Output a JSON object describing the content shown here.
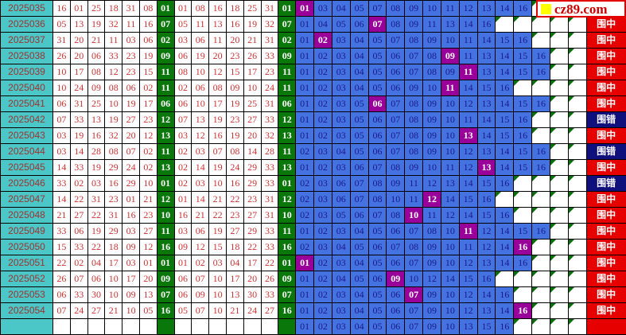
{
  "logo": {
    "text": "cz89.com"
  },
  "result_labels": {
    "hit": "围中",
    "miss": "围错",
    "pending": ""
  },
  "colors": {
    "period_bg": "#4cc7c7",
    "period_text": "#993333",
    "number_text": "#cc3333",
    "special_bg": "#0a770a",
    "covered_bg": "#4472e0",
    "covered_text": "#1a1a8c",
    "hit_bg": "#990099",
    "result_hit_bg": "#e60000",
    "result_miss_bg": "#10107d",
    "triangle": "#0a6e0a",
    "logo_border": "#e00000",
    "logo_text": "#cc0000",
    "logo_square": "#ffff00"
  },
  "chart_data": {
    "type": "table",
    "covered_slot_count": 16,
    "rows": [
      {
        "period": "2025035",
        "drawn": [
          "16",
          "01",
          "25",
          "18",
          "31",
          "08"
        ],
        "special": "01",
        "sorted": [
          "01",
          "08",
          "16",
          "18",
          "25",
          "31"
        ],
        "covered": [
          "01",
          "03",
          "04",
          "05",
          "07",
          "08",
          "09",
          "10",
          "11",
          "12",
          "13",
          "14",
          "16"
        ],
        "hit": "01",
        "result": "hit"
      },
      {
        "period": "2025036",
        "drawn": [
          "05",
          "13",
          "19",
          "32",
          "11",
          "16"
        ],
        "special": "07",
        "sorted": [
          "05",
          "11",
          "13",
          "16",
          "19",
          "32"
        ],
        "covered": [
          "01",
          "04",
          "05",
          "06",
          "07",
          "08",
          "09",
          "11",
          "13",
          "14",
          "16"
        ],
        "hit": "07",
        "result": "hit"
      },
      {
        "period": "2025037",
        "drawn": [
          "31",
          "20",
          "21",
          "11",
          "03",
          "06"
        ],
        "special": "02",
        "sorted": [
          "03",
          "06",
          "11",
          "20",
          "21",
          "31"
        ],
        "covered": [
          "01",
          "02",
          "03",
          "04",
          "05",
          "07",
          "08",
          "09",
          "10",
          "11",
          "14",
          "15",
          "16"
        ],
        "hit": "02",
        "result": "hit"
      },
      {
        "period": "2025038",
        "drawn": [
          "26",
          "20",
          "06",
          "33",
          "23",
          "19"
        ],
        "special": "09",
        "sorted": [
          "06",
          "19",
          "20",
          "23",
          "26",
          "33"
        ],
        "covered": [
          "01",
          "02",
          "03",
          "04",
          "05",
          "06",
          "07",
          "08",
          "09",
          "11",
          "13",
          "14",
          "15",
          "16"
        ],
        "hit": "09",
        "result": "hit"
      },
      {
        "period": "2025039",
        "drawn": [
          "10",
          "17",
          "08",
          "12",
          "23",
          "15"
        ],
        "special": "11",
        "sorted": [
          "08",
          "10",
          "12",
          "15",
          "17",
          "23"
        ],
        "covered": [
          "01",
          "02",
          "03",
          "04",
          "05",
          "06",
          "07",
          "08",
          "09",
          "11",
          "13",
          "14",
          "15",
          "16"
        ],
        "hit": "11",
        "result": "hit"
      },
      {
        "period": "2025040",
        "drawn": [
          "10",
          "24",
          "09",
          "08",
          "06",
          "02"
        ],
        "special": "11",
        "sorted": [
          "02",
          "06",
          "08",
          "09",
          "10",
          "24"
        ],
        "covered": [
          "01",
          "02",
          "03",
          "04",
          "05",
          "06",
          "09",
          "10",
          "11",
          "14",
          "15",
          "16"
        ],
        "hit": "11",
        "result": "hit"
      },
      {
        "period": "2025041",
        "drawn": [
          "06",
          "31",
          "25",
          "10",
          "19",
          "17"
        ],
        "special": "06",
        "sorted": [
          "06",
          "10",
          "17",
          "19",
          "25",
          "31"
        ],
        "covered": [
          "01",
          "02",
          "03",
          "05",
          "06",
          "07",
          "08",
          "09",
          "10",
          "12",
          "13",
          "14",
          "15",
          "16"
        ],
        "hit": "06",
        "result": "hit"
      },
      {
        "period": "2025042",
        "drawn": [
          "07",
          "33",
          "13",
          "19",
          "27",
          "23"
        ],
        "special": "12",
        "sorted": [
          "07",
          "13",
          "19",
          "23",
          "27",
          "33"
        ],
        "covered": [
          "01",
          "02",
          "03",
          "05",
          "06",
          "07",
          "08",
          "09",
          "10",
          "11",
          "14",
          "15",
          "16"
        ],
        "hit": null,
        "result": "miss"
      },
      {
        "period": "2025043",
        "drawn": [
          "03",
          "19",
          "16",
          "32",
          "20",
          "12"
        ],
        "special": "13",
        "sorted": [
          "03",
          "12",
          "16",
          "19",
          "20",
          "32"
        ],
        "covered": [
          "01",
          "02",
          "03",
          "05",
          "06",
          "07",
          "08",
          "09",
          "10",
          "13",
          "14",
          "15",
          "16"
        ],
        "hit": "13",
        "result": "hit"
      },
      {
        "period": "2025044",
        "drawn": [
          "03",
          "14",
          "28",
          "08",
          "07",
          "02"
        ],
        "special": "11",
        "sorted": [
          "02",
          "03",
          "07",
          "08",
          "14",
          "28"
        ],
        "covered": [
          "02",
          "03",
          "04",
          "05",
          "06",
          "07",
          "08",
          "09",
          "10",
          "12",
          "13",
          "14",
          "15",
          "16"
        ],
        "hit": null,
        "result": "miss"
      },
      {
        "period": "2025045",
        "drawn": [
          "14",
          "33",
          "19",
          "29",
          "24",
          "02"
        ],
        "special": "13",
        "sorted": [
          "02",
          "14",
          "19",
          "24",
          "29",
          "33"
        ],
        "covered": [
          "01",
          "02",
          "03",
          "06",
          "07",
          "08",
          "09",
          "10",
          "11",
          "12",
          "13",
          "14",
          "15",
          "16"
        ],
        "hit": "13",
        "result": "hit"
      },
      {
        "period": "2025046",
        "drawn": [
          "33",
          "02",
          "03",
          "16",
          "29",
          "10"
        ],
        "special": "01",
        "sorted": [
          "02",
          "03",
          "10",
          "16",
          "29",
          "33"
        ],
        "covered": [
          "02",
          "03",
          "06",
          "07",
          "08",
          "09",
          "11",
          "12",
          "13",
          "14",
          "15",
          "16"
        ],
        "hit": null,
        "result": "miss"
      },
      {
        "period": "2025047",
        "drawn": [
          "14",
          "22",
          "31",
          "23",
          "01",
          "21"
        ],
        "special": "12",
        "sorted": [
          "01",
          "14",
          "21",
          "22",
          "23",
          "31"
        ],
        "covered": [
          "02",
          "03",
          "06",
          "07",
          "08",
          "10",
          "11",
          "12",
          "14",
          "15",
          "16"
        ],
        "hit": "12",
        "result": "hit"
      },
      {
        "period": "2025048",
        "drawn": [
          "21",
          "27",
          "22",
          "31",
          "16",
          "23"
        ],
        "special": "10",
        "sorted": [
          "16",
          "21",
          "22",
          "23",
          "27",
          "31"
        ],
        "covered": [
          "02",
          "03",
          "05",
          "06",
          "07",
          "08",
          "10",
          "11",
          "12",
          "14",
          "15",
          "16"
        ],
        "hit": "10",
        "result": "hit"
      },
      {
        "period": "2025049",
        "drawn": [
          "33",
          "06",
          "19",
          "29",
          "03",
          "27"
        ],
        "special": "11",
        "sorted": [
          "03",
          "06",
          "19",
          "27",
          "29",
          "33"
        ],
        "covered": [
          "01",
          "02",
          "03",
          "04",
          "05",
          "06",
          "07",
          "08",
          "10",
          "11",
          "12",
          "14",
          "15",
          "16"
        ],
        "hit": "11",
        "result": "hit"
      },
      {
        "period": "2025050",
        "drawn": [
          "15",
          "33",
          "22",
          "18",
          "09",
          "12"
        ],
        "special": "16",
        "sorted": [
          "09",
          "12",
          "15",
          "18",
          "22",
          "33"
        ],
        "covered": [
          "02",
          "03",
          "04",
          "05",
          "06",
          "07",
          "08",
          "09",
          "10",
          "11",
          "12",
          "14",
          "16"
        ],
        "hit": "16",
        "result": "hit"
      },
      {
        "period": "2025051",
        "drawn": [
          "22",
          "02",
          "04",
          "17",
          "03",
          "01"
        ],
        "special": "01",
        "sorted": [
          "01",
          "02",
          "03",
          "04",
          "17",
          "22"
        ],
        "covered": [
          "01",
          "02",
          "03",
          "04",
          "05",
          "06",
          "07",
          "09",
          "10",
          "12",
          "13",
          "14",
          "16"
        ],
        "hit": "01",
        "result": "hit"
      },
      {
        "period": "2025052",
        "drawn": [
          "26",
          "07",
          "06",
          "10",
          "17",
          "20"
        ],
        "special": "09",
        "sorted": [
          "06",
          "07",
          "10",
          "17",
          "20",
          "26"
        ],
        "covered": [
          "01",
          "02",
          "04",
          "05",
          "06",
          "09",
          "10",
          "12",
          "14",
          "15",
          "16"
        ],
        "hit": "09",
        "result": "hit"
      },
      {
        "period": "2025053",
        "drawn": [
          "06",
          "33",
          "30",
          "10",
          "09",
          "13"
        ],
        "special": "07",
        "sorted": [
          "06",
          "09",
          "10",
          "13",
          "30",
          "33"
        ],
        "covered": [
          "01",
          "02",
          "03",
          "04",
          "05",
          "06",
          "07",
          "09",
          "10",
          "12",
          "14",
          "16"
        ],
        "hit": "07",
        "result": "hit"
      },
      {
        "period": "2025054",
        "drawn": [
          "07",
          "24",
          "27",
          "21",
          "10",
          "05"
        ],
        "special": "16",
        "sorted": [
          "05",
          "07",
          "10",
          "21",
          "24",
          "27"
        ],
        "covered": [
          "01",
          "02",
          "03",
          "04",
          "05",
          "06",
          "07",
          "09",
          "10",
          "12",
          "13",
          "14",
          "16"
        ],
        "hit": "16",
        "result": "hit"
      },
      {
        "period": "",
        "drawn": [
          "",
          "",
          "",
          "",
          "",
          ""
        ],
        "special": "",
        "sorted": [
          "",
          "",
          "",
          "",
          "",
          ""
        ],
        "covered": [
          "01",
          "02",
          "03",
          "04",
          "05",
          "06",
          "07",
          "09",
          "10",
          "13",
          "15",
          "16"
        ],
        "hit": null,
        "result": "pending"
      }
    ]
  }
}
